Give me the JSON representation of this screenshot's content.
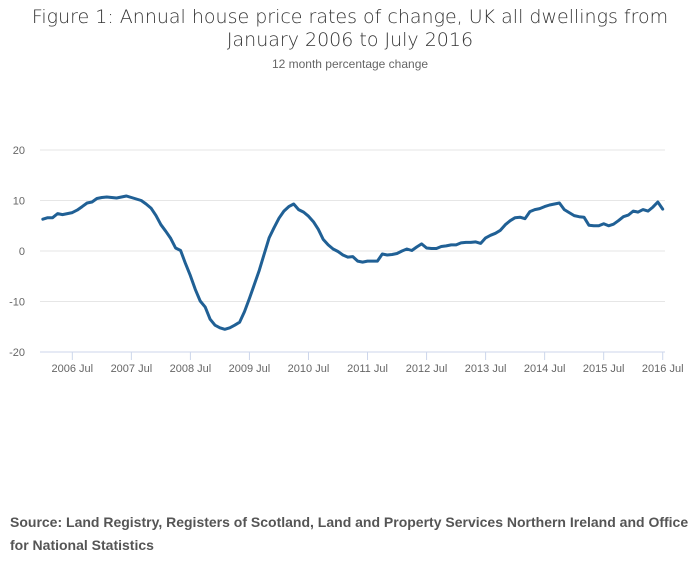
{
  "chart_data": {
    "type": "line",
    "title": "Figure 1: Annual house price rates of change, UK all dwellings from January 2006 to July 2016",
    "subtitle": "12 month percentage change",
    "xlabel": "",
    "ylabel": "",
    "ylim": [
      -20,
      20
    ],
    "yticks": [
      "20",
      "10",
      "0",
      "-10",
      "-20"
    ],
    "ytick_values": [
      20,
      10,
      0,
      -10,
      -20
    ],
    "xticks": [
      "2006 Jul",
      "2007 Jul",
      "2008 Jul",
      "2009 Jul",
      "2010 Jul",
      "2011 Jul",
      "2012 Jul",
      "2013 Jul",
      "2014 Jul",
      "2015 Jul",
      "2016 Jul"
    ],
    "xtick_month_index": [
      6,
      18,
      30,
      42,
      54,
      66,
      78,
      90,
      102,
      114,
      126
    ],
    "x_start": "2006 Jan",
    "x_end": "2016 Jul",
    "grid": true,
    "legend": "none",
    "series": [
      {
        "name": "UK all dwellings",
        "color": "#206095",
        "values": [
          6.3,
          6.6,
          6.6,
          7.4,
          7.2,
          7.4,
          7.6,
          8.1,
          8.8,
          9.5,
          9.7,
          10.4,
          10.6,
          10.7,
          10.6,
          10.5,
          10.7,
          10.9,
          10.6,
          10.3,
          10.0,
          9.3,
          8.5,
          7.0,
          5.2,
          3.9,
          2.5,
          0.6,
          0.1,
          -2.5,
          -4.9,
          -7.6,
          -9.9,
          -11.1,
          -13.5,
          -14.7,
          -15.2,
          -15.5,
          -15.2,
          -14.7,
          -14.1,
          -12.0,
          -9.4,
          -6.6,
          -3.8,
          -0.6,
          2.6,
          4.6,
          6.5,
          7.9,
          8.8,
          9.3,
          8.2,
          7.7,
          6.9,
          5.8,
          4.3,
          2.3,
          1.2,
          0.4,
          -0.1,
          -0.8,
          -1.2,
          -1.1,
          -2.0,
          -2.2,
          -2.0,
          -2.0,
          -2.0,
          -0.6,
          -0.8,
          -0.7,
          -0.5,
          0.0,
          0.4,
          0.1,
          0.8,
          1.4,
          0.6,
          0.5,
          0.5,
          0.9,
          1.0,
          1.2,
          1.2,
          1.6,
          1.7,
          1.7,
          1.8,
          1.5,
          2.6,
          3.1,
          3.5,
          4.1,
          5.2,
          6.0,
          6.6,
          6.7,
          6.4,
          7.8,
          8.2,
          8.4,
          8.8,
          9.1,
          9.3,
          9.5,
          8.2,
          7.6,
          7.0,
          6.8,
          6.7,
          5.1,
          5.0,
          5.0,
          5.4,
          5.0,
          5.3,
          6.0,
          6.8,
          7.1,
          7.9,
          7.7,
          8.2,
          7.9,
          8.7,
          9.7,
          8.3
        ]
      }
    ]
  },
  "source": "Source: Land Registry, Registers of Scotland, Land and Property Services Northern Ireland and Office for National Statistics"
}
